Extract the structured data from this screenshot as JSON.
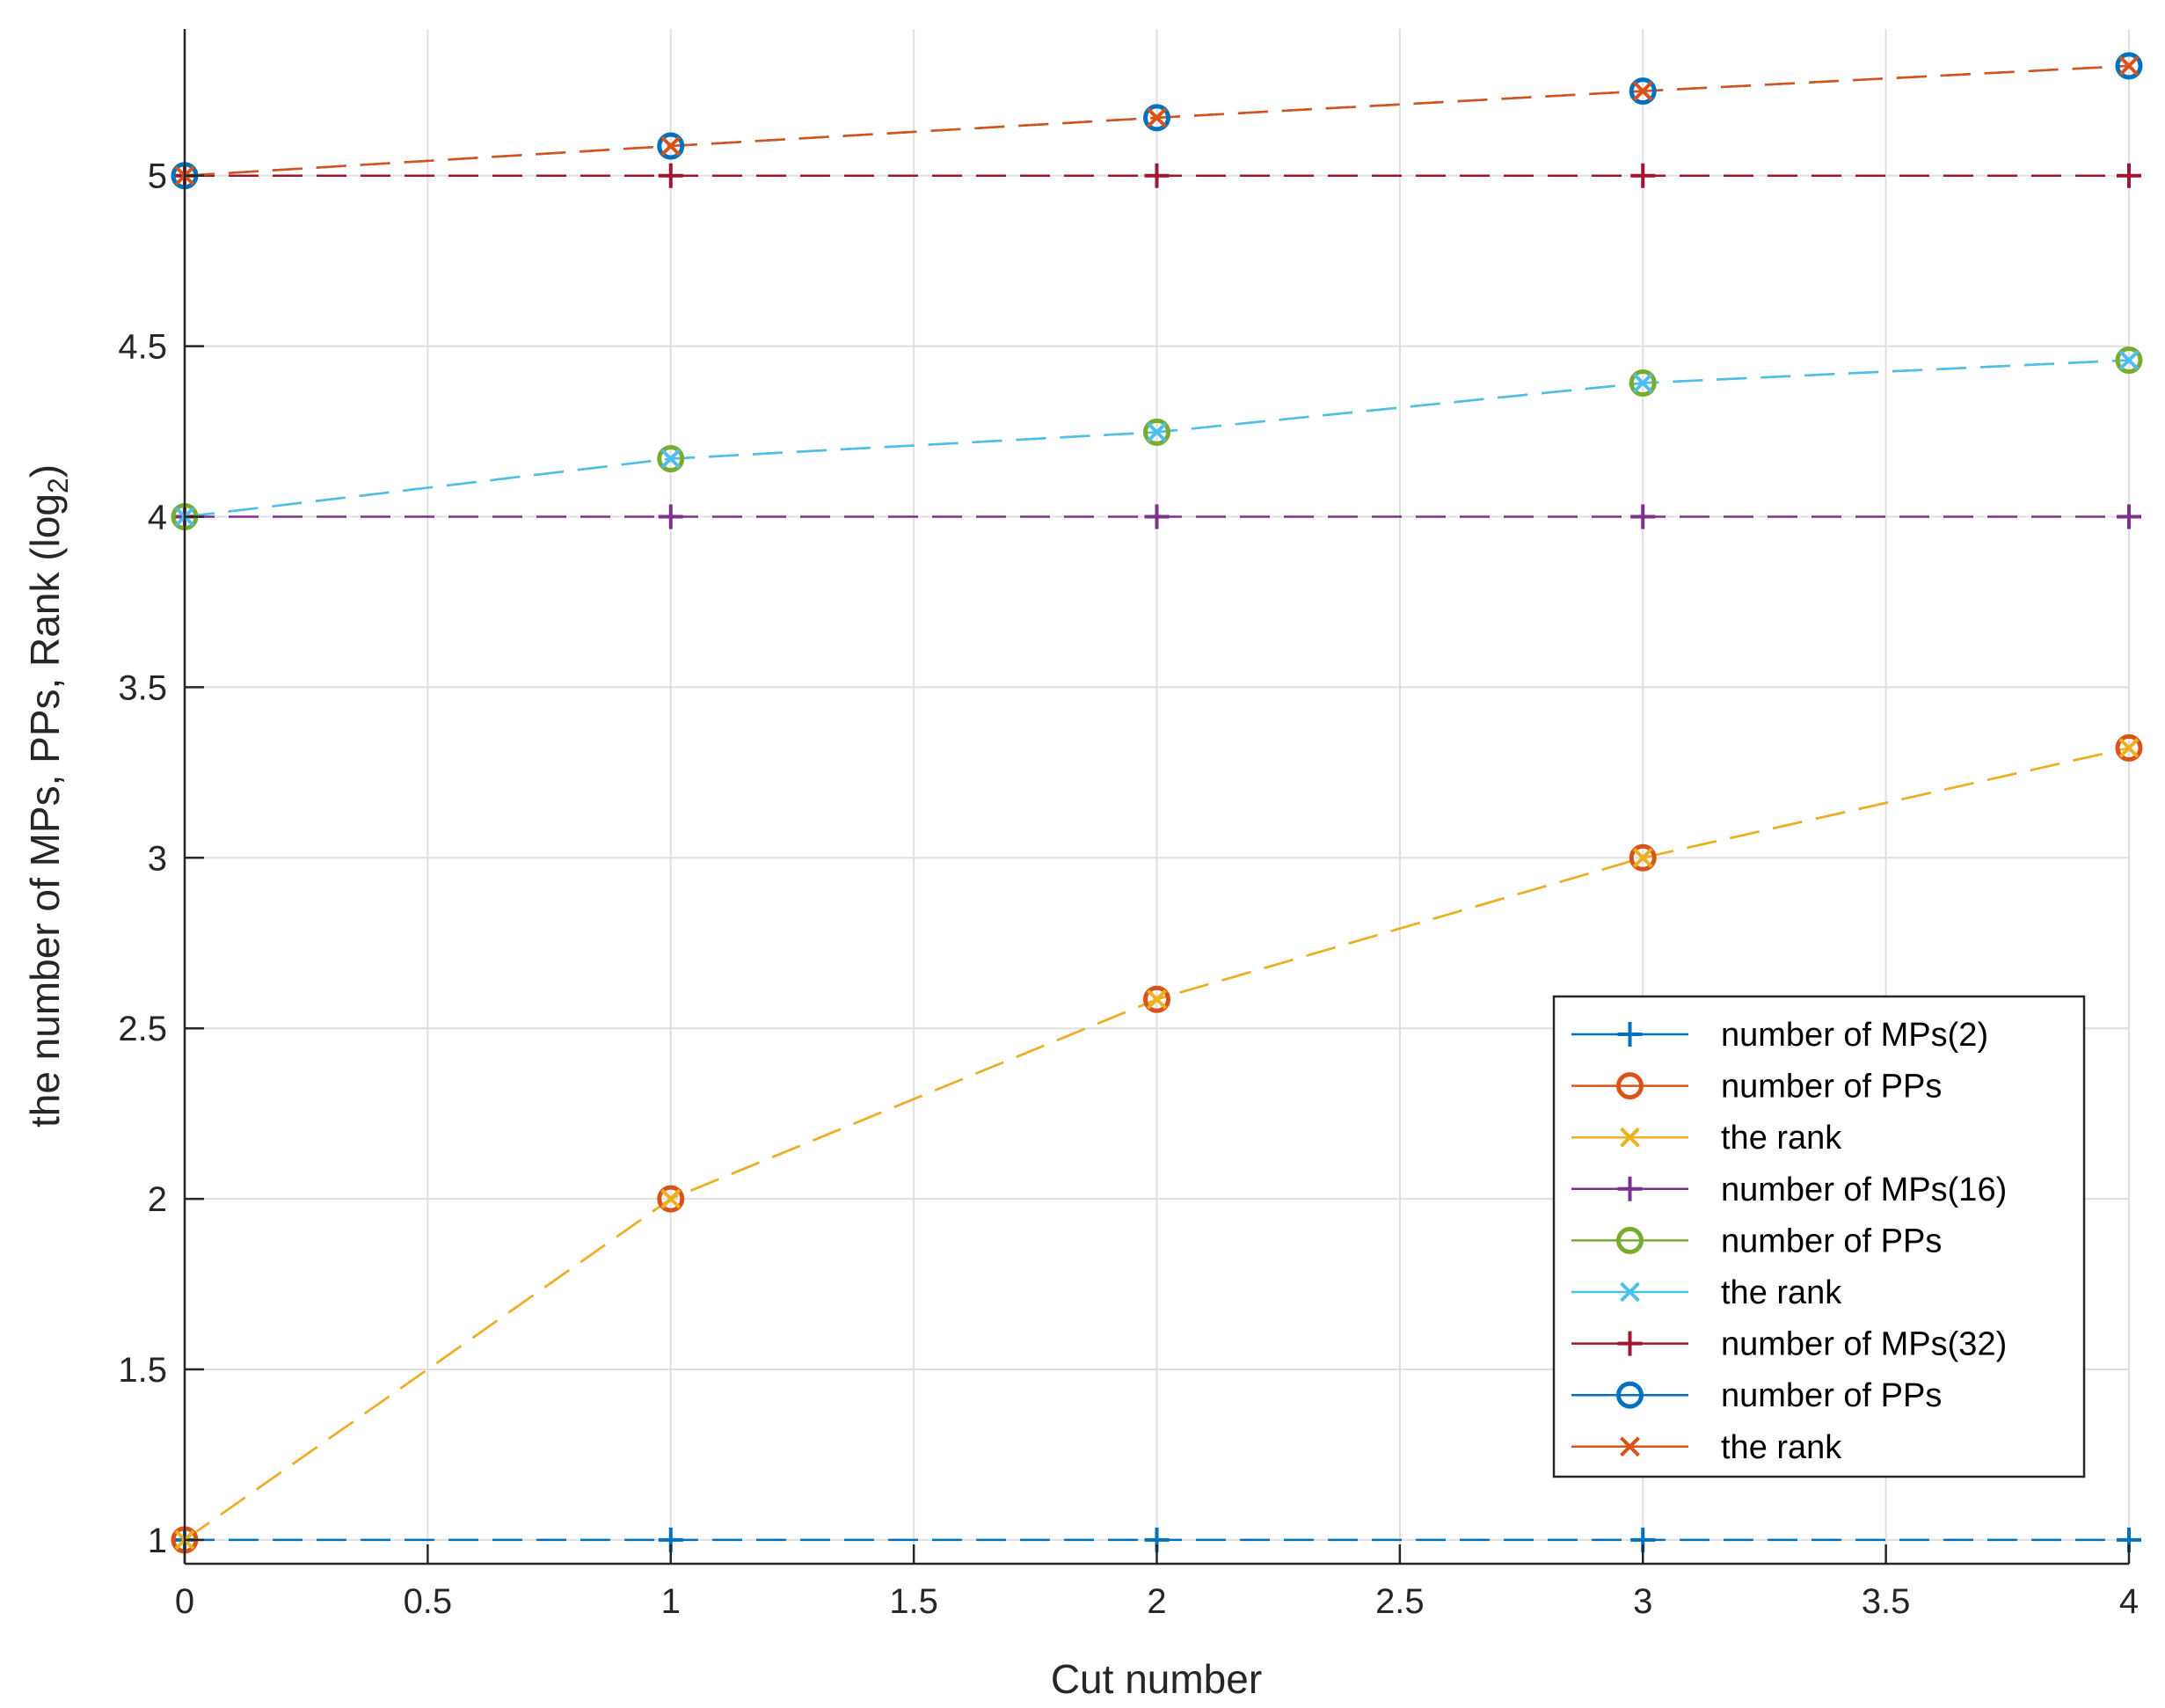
{
  "chart_data": {
    "type": "line",
    "title": "",
    "xlabel": "Cut number",
    "ylabel_main": "the number of MPs, PPs, Rank (log",
    "ylabel_sub": "2",
    "ylabel_end": ")",
    "xlim": [
      0,
      4
    ],
    "ylim": [
      0.93,
      5.43
    ],
    "grid": true,
    "legend_position": "lower-right",
    "xticks": [
      0,
      0.5,
      1,
      1.5,
      2,
      2.5,
      3,
      3.5,
      4
    ],
    "xtick_labels": [
      "0",
      "0.5",
      "1",
      "1.5",
      "2",
      "2.5",
      "3",
      "3.5",
      "4"
    ],
    "yticks": [
      1,
      1.5,
      2,
      2.5,
      3,
      3.5,
      4,
      4.5,
      5
    ],
    "ytick_labels": [
      "1",
      "1.5",
      "2",
      "2.5",
      "3",
      "3.5",
      "4",
      "4.5",
      "5"
    ],
    "x": [
      0,
      1,
      2,
      3,
      4
    ],
    "series": [
      {
        "name": "number of MPs(2)",
        "values": [
          1,
          1,
          1,
          1,
          1
        ],
        "color": "#0072BD",
        "marker": "plus"
      },
      {
        "name": "number of PPs",
        "values": [
          1,
          2,
          2.585,
          3,
          3.322
        ],
        "color": "#D95319",
        "marker": "circle"
      },
      {
        "name": "the rank",
        "values": [
          1,
          2,
          2.585,
          3,
          3.322
        ],
        "color": "#EDB120",
        "marker": "x"
      },
      {
        "name": "number of MPs(16)",
        "values": [
          4,
          4,
          4,
          4,
          4
        ],
        "color": "#7E2F8E",
        "marker": "plus"
      },
      {
        "name": "number of PPs",
        "values": [
          4,
          4.17,
          4.248,
          4.392,
          4.459
        ],
        "color": "#77AC30",
        "marker": "circle"
      },
      {
        "name": "the rank",
        "values": [
          4,
          4.17,
          4.248,
          4.392,
          4.459
        ],
        "color": "#4DBEEE",
        "marker": "x"
      },
      {
        "name": "number of MPs(32)",
        "values": [
          5,
          5,
          5,
          5,
          5
        ],
        "color": "#A2142F",
        "marker": "plus"
      },
      {
        "name": "number of PPs",
        "values": [
          5,
          5.087,
          5.17,
          5.248,
          5.322
        ],
        "color": "#0072BD",
        "marker": "circle"
      },
      {
        "name": "the rank",
        "values": [
          5,
          5.087,
          5.17,
          5.248,
          5.322
        ],
        "color": "#D95319",
        "marker": "x"
      }
    ]
  }
}
